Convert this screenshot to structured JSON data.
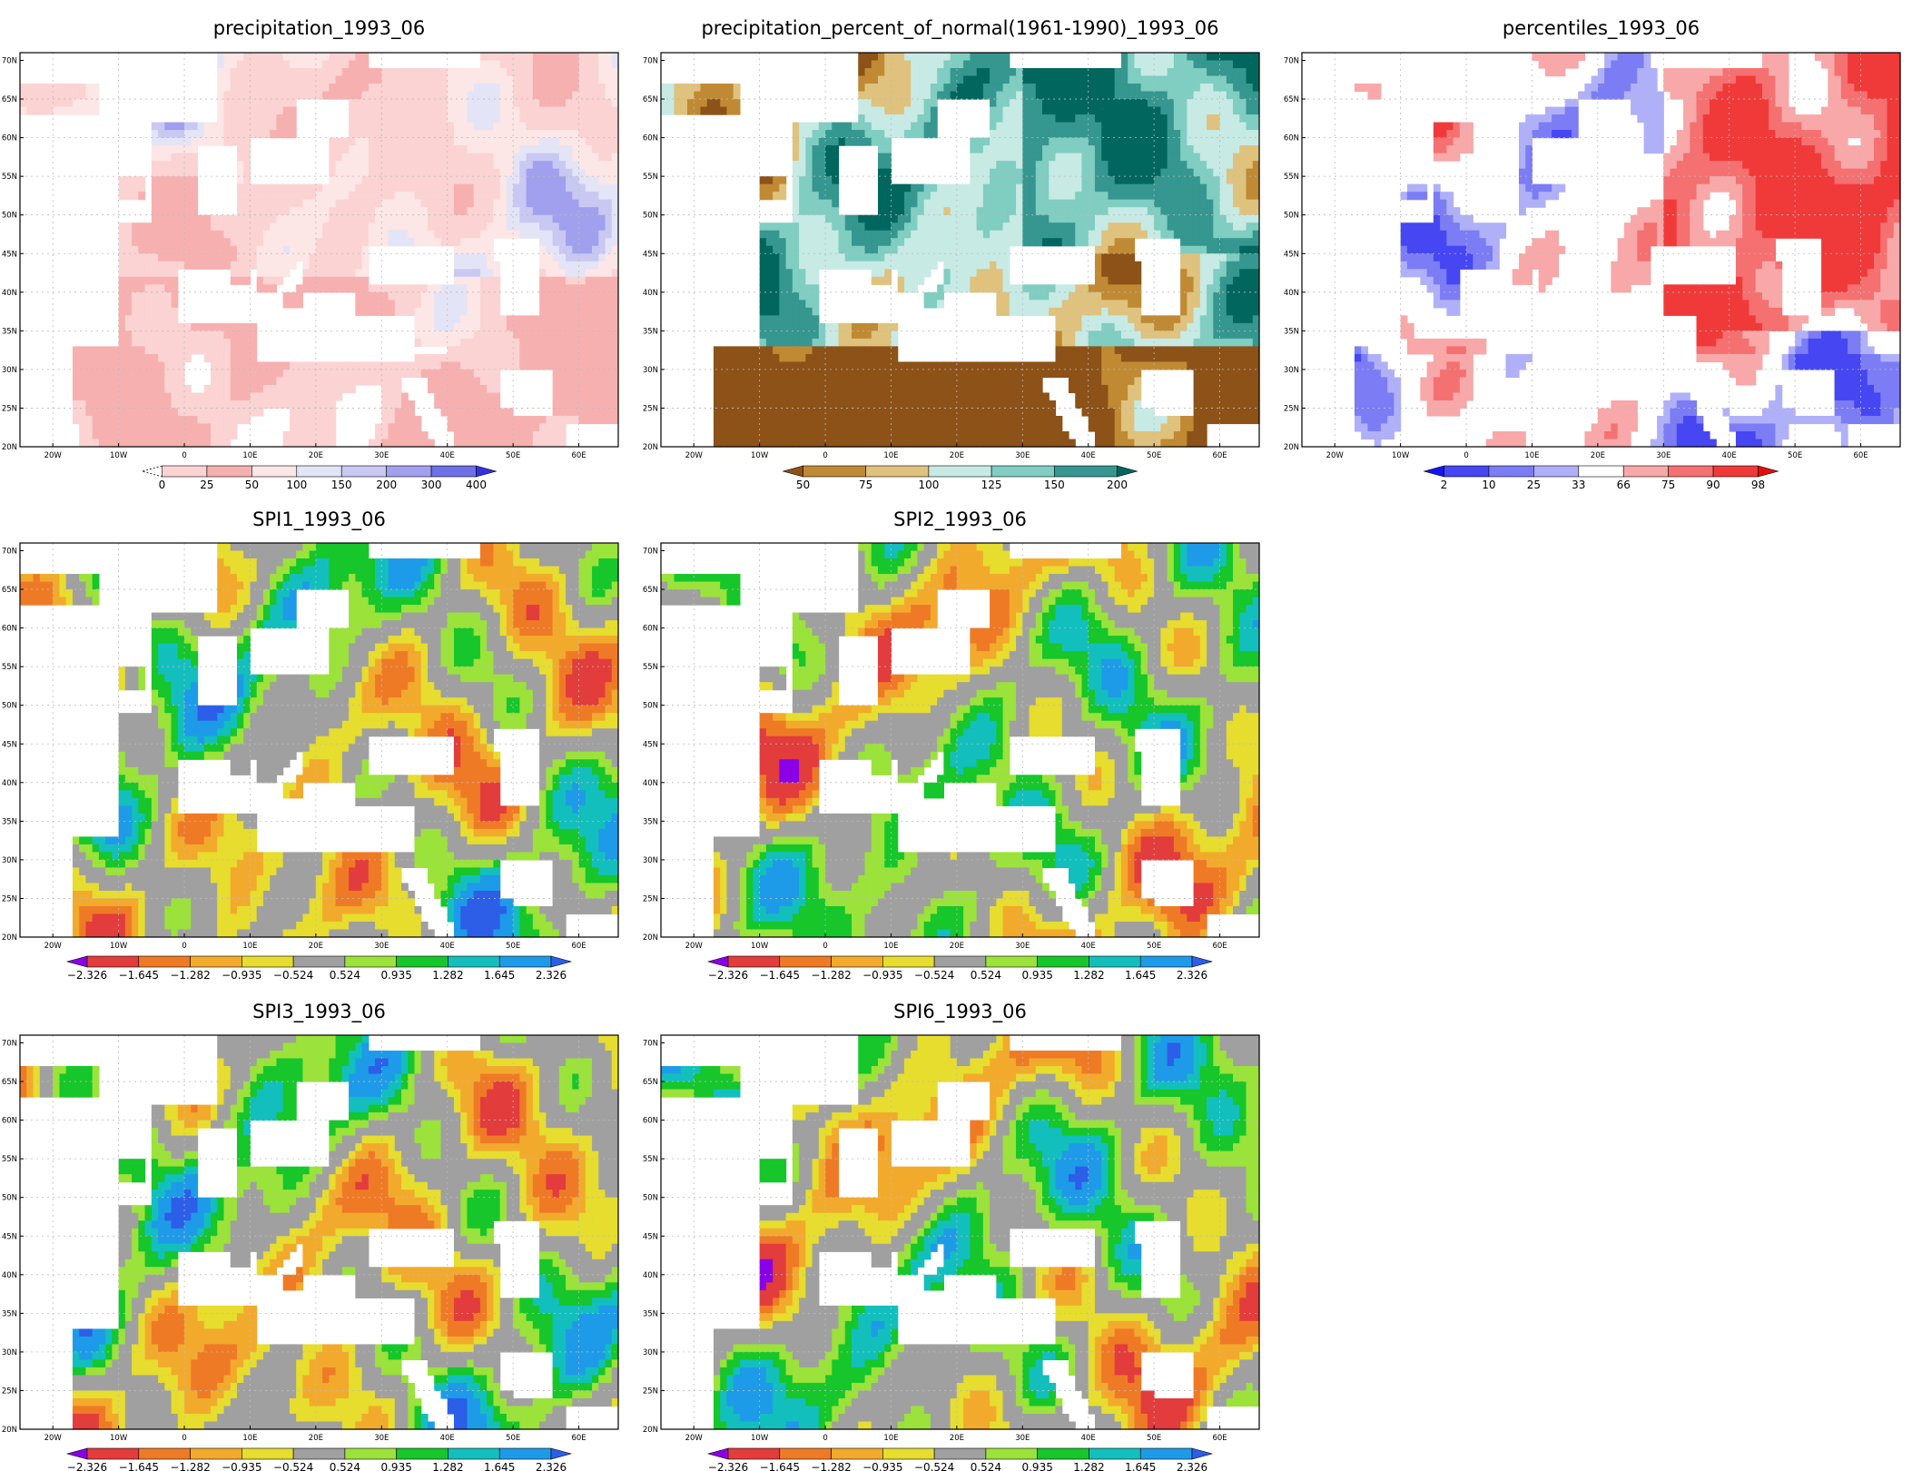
{
  "panels": [
    {
      "id": "precip",
      "title": "precipitation_1993_06",
      "scheme": "precip",
      "colorbar": {
        "labels": [
          "0",
          "25",
          "50",
          "100",
          "150",
          "200",
          "300",
          "400"
        ],
        "colors": [
          "#ffffff",
          "#fbd3d3",
          "#f7b0b0",
          "#fce6e6",
          "#e4e4f7",
          "#c8c8f3",
          "#a0a0ee",
          "#6f6fe8",
          "#3232e0"
        ],
        "left_arrow": "dashed",
        "right_arrow": true
      }
    },
    {
      "id": "percent",
      "title": "precipitation_percent_of_normal(1961-1990)_1993_06",
      "scheme": "percent",
      "colorbar": {
        "labels": [
          "50",
          "75",
          "100",
          "125",
          "150",
          "200"
        ],
        "colors": [
          "#8c5218",
          "#bf8a33",
          "#dfc27d",
          "#c7eae5",
          "#80cdc1",
          "#35978f",
          "#01665e"
        ],
        "left_arrow": true,
        "right_arrow": true
      }
    },
    {
      "id": "percentiles",
      "title": "percentiles_1993_06",
      "scheme": "percentiles",
      "colorbar": {
        "labels": [
          "2",
          "10",
          "25",
          "33",
          "66",
          "75",
          "90",
          "98"
        ],
        "colors": [
          "#1515f0",
          "#4646f2",
          "#7c7cf5",
          "#b0b0f8",
          "#ffffff",
          "#f8a8a8",
          "#f57070",
          "#f03a3a",
          "#e60c0c"
        ],
        "left_arrow": true,
        "right_arrow": true
      }
    },
    {
      "id": "spi1",
      "title": "SPI1_1993_06",
      "scheme": "spi",
      "colorbar": {
        "labels": [
          "-2.326",
          "-1.645",
          "-1.282",
          "-0.935",
          "-0.524",
          "0.524",
          "0.935",
          "1.282",
          "1.645",
          "2.326"
        ],
        "colors": [
          "#8a00e6",
          "#e23c3c",
          "#ef7a26",
          "#f2aa2c",
          "#e6dd2e",
          "#a0a0a0",
          "#9be23a",
          "#16c62a",
          "#12bfbd",
          "#1e9be8",
          "#2c5ee8"
        ],
        "left_arrow": true,
        "right_arrow": true
      }
    },
    {
      "id": "spi2",
      "title": "SPI2_1993_06",
      "scheme": "spi",
      "colorbar": {
        "labels": [
          "-2.326",
          "-1.645",
          "-1.282",
          "-0.935",
          "-0.524",
          "0.524",
          "0.935",
          "1.282",
          "1.645",
          "2.326"
        ],
        "colors": [
          "#8a00e6",
          "#e23c3c",
          "#ef7a26",
          "#f2aa2c",
          "#e6dd2e",
          "#a0a0a0",
          "#9be23a",
          "#16c62a",
          "#12bfbd",
          "#1e9be8",
          "#2c5ee8"
        ],
        "left_arrow": true,
        "right_arrow": true
      }
    },
    {
      "id": "spi3",
      "title": "SPI3_1993_06",
      "scheme": "spi",
      "colorbar": {
        "labels": [
          "-2.326",
          "-1.645",
          "-1.282",
          "-0.935",
          "-0.524",
          "0.524",
          "0.935",
          "1.282",
          "1.645",
          "2.326"
        ],
        "colors": [
          "#8a00e6",
          "#e23c3c",
          "#ef7a26",
          "#f2aa2c",
          "#e6dd2e",
          "#a0a0a0",
          "#9be23a",
          "#16c62a",
          "#12bfbd",
          "#1e9be8",
          "#2c5ee8"
        ],
        "left_arrow": true,
        "right_arrow": true
      }
    },
    {
      "id": "spi6",
      "title": "SPI6_1993_06",
      "scheme": "spi",
      "colorbar": {
        "labels": [
          "-2.326",
          "-1.645",
          "-1.282",
          "-0.935",
          "-0.524",
          "0.524",
          "0.935",
          "1.282",
          "1.645",
          "2.326"
        ],
        "colors": [
          "#8a00e6",
          "#e23c3c",
          "#ef7a26",
          "#f2aa2c",
          "#e6dd2e",
          "#a0a0a0",
          "#9be23a",
          "#16c62a",
          "#12bfbd",
          "#1e9be8",
          "#2c5ee8"
        ],
        "left_arrow": true,
        "right_arrow": true
      }
    }
  ],
  "map_axes": {
    "lat_labels": [
      "20N",
      "25N",
      "30N",
      "35N",
      "40N",
      "45N",
      "50N",
      "55N",
      "60N",
      "65N",
      "70N"
    ],
    "lon_labels": [
      "20W",
      "10W",
      "0",
      "10E",
      "20E",
      "30E",
      "40E",
      "50E",
      "60E"
    ]
  }
}
